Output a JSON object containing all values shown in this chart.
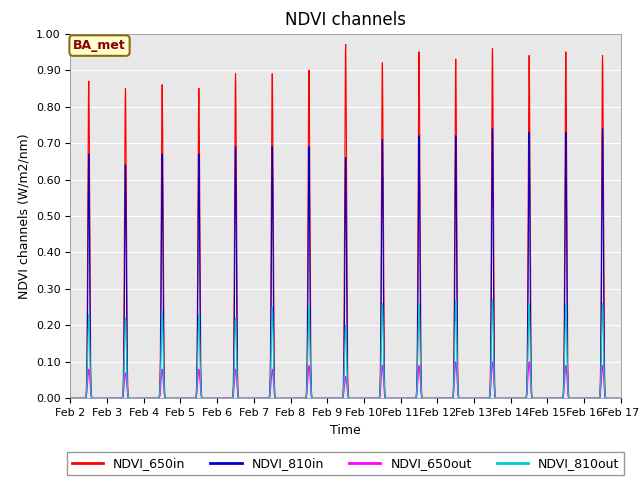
{
  "title": "NDVI channels",
  "ylabel": "NDVI channels (W/m2/nm)",
  "xlabel": "Time",
  "annotation": "BA_met",
  "ylim": [
    0.0,
    1.0
  ],
  "legend": [
    "NDVI_650in",
    "NDVI_810in",
    "NDVI_650out",
    "NDVI_810out"
  ],
  "colors": [
    "#ff0000",
    "#0000cc",
    "#ff00ff",
    "#00cccc"
  ],
  "bg_color": "#e8e8e8",
  "fig_bg": "#ffffff",
  "xtick_labels": [
    "Feb 2",
    "Feb 3",
    "Feb 4",
    "Feb 5",
    "Feb 6",
    "Feb 7",
    "Feb 8",
    "Feb 9",
    "Feb 10",
    "Feb 11",
    "Feb 12",
    "Feb 13",
    "Feb 14",
    "Feb 15",
    "Feb 16",
    "Feb 17"
  ],
  "num_days": 15,
  "peak_650in": [
    0.87,
    0.85,
    0.86,
    0.85,
    0.89,
    0.89,
    0.9,
    0.97,
    0.92,
    0.95,
    0.93,
    0.96,
    0.94,
    0.95,
    0.94
  ],
  "peak_810in": [
    0.67,
    0.64,
    0.67,
    0.67,
    0.69,
    0.69,
    0.69,
    0.66,
    0.71,
    0.72,
    0.72,
    0.74,
    0.73,
    0.73,
    0.74
  ],
  "peak_650out": [
    0.08,
    0.07,
    0.08,
    0.08,
    0.08,
    0.08,
    0.09,
    0.06,
    0.09,
    0.09,
    0.1,
    0.1,
    0.1,
    0.09,
    0.09
  ],
  "peak_810out": [
    0.23,
    0.22,
    0.24,
    0.23,
    0.22,
    0.25,
    0.25,
    0.2,
    0.26,
    0.26,
    0.27,
    0.27,
    0.26,
    0.26,
    0.26
  ],
  "title_fontsize": 12,
  "label_fontsize": 9,
  "tick_fontsize": 8,
  "legend_fontsize": 9
}
